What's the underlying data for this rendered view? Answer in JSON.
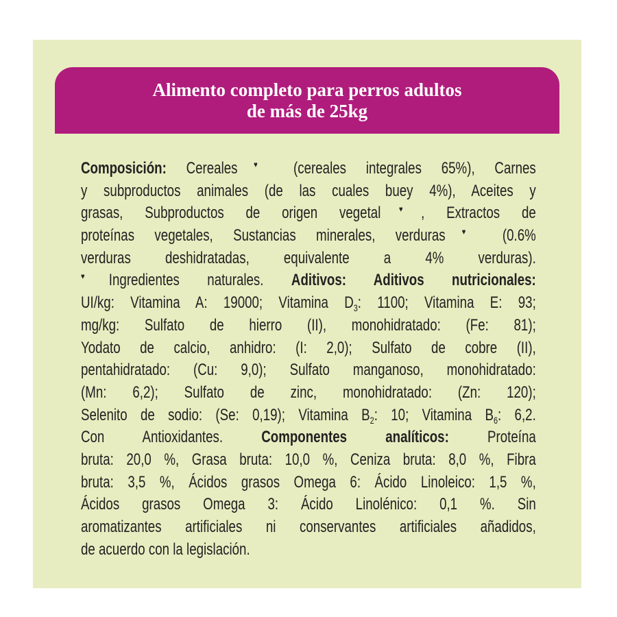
{
  "colors": {
    "background": "#e8edc1",
    "header": "#b01c7c",
    "header_text": "#ffffff",
    "body_text": "#222222"
  },
  "header": {
    "title_lines": [
      "Alimento completo para perros adultos",
      "de más de 25kg"
    ]
  },
  "composition": {
    "lines": [
      [
        {
          "t": "Composición:",
          "s": "b"
        },
        {
          "t": " Cereales"
        },
        {
          "t": "♥",
          "s": "sup"
        },
        {
          "t": " (cereales integrales 65%), Carnes"
        }
      ],
      [
        {
          "t": "y subproductos animales (de las cuales buey 4%), Aceites y"
        }
      ],
      [
        {
          "t": "grasas, Subproductos de origen vegetal"
        },
        {
          "t": "♥",
          "s": "sup"
        },
        {
          "t": ", Extractos de"
        }
      ],
      [
        {
          "t": "proteínas vegetales, Sustancias minerales, verduras"
        },
        {
          "t": "♥",
          "s": "sup"
        },
        {
          "t": " (0.6%"
        }
      ],
      [
        {
          "t": "verduras deshidratadas, equivalente a 4% verduras)."
        }
      ],
      [
        {
          "t": "♥",
          "s": "sup"
        },
        {
          "t": "Ingredientes naturales. "
        },
        {
          "t": "Aditivos: Aditivos nutricionales:",
          "s": "b"
        }
      ],
      [
        {
          "t": "UI/kg: Vitamina A: 19000; Vitamina D"
        },
        {
          "t": "3",
          "s": "sub"
        },
        {
          "t": ": 1100; Vitamina E: 93;"
        }
      ],
      [
        {
          "t": "mg/kg: Sulfato de hierro (II), monohidratado: (Fe: 81);"
        }
      ],
      [
        {
          "t": "Yodato de calcio, anhidro: (I: 2,0); Sulfato de cobre (II),"
        }
      ],
      [
        {
          "t": "pentahidratado: (Cu: 9,0); Sulfato manganoso, monohidratado:"
        }
      ],
      [
        {
          "t": "(Mn: 6,2); Sulfato de zinc, monohidratado: (Zn: 120);"
        }
      ],
      [
        {
          "t": "Selenito de sodio: (Se: 0,19); Vitamina B"
        },
        {
          "t": "2",
          "s": "sub"
        },
        {
          "t": ": 10; Vitamina B"
        },
        {
          "t": "6",
          "s": "sub"
        },
        {
          "t": ": 6,2."
        }
      ],
      [
        {
          "t": "Con Antioxidantes. "
        },
        {
          "t": "Componentes analíticos:",
          "s": "b"
        },
        {
          "t": " Proteína"
        }
      ],
      [
        {
          "t": "bruta: 20,0 %, Grasa bruta: 10,0 %, Ceniza bruta: 8,0 %, Fibra"
        }
      ],
      [
        {
          "t": "bruta: 3,5 %, Ácidos grasos Omega 6: Ácido Linoleico: 1,5 %,"
        }
      ],
      [
        {
          "t": "Ácidos grasos Omega 3: Ácido Linolénico: 0,1 %. Sin"
        }
      ],
      [
        {
          "t": "aromatizantes artificiales ni conservantes artificiales añadidos,"
        }
      ],
      [
        {
          "t": "de acuerdo con la legislación."
        }
      ]
    ]
  }
}
